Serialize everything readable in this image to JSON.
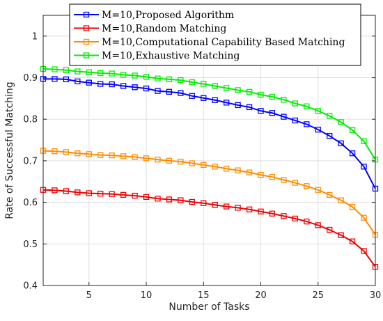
{
  "chart_data": {
    "type": "line",
    "xlabel": "Number of Tasks",
    "ylabel": "Rate of Successful Matching",
    "xlim": [
      1,
      30
    ],
    "ylim": [
      0.4,
      1.05
    ],
    "xticks": [
      5,
      10,
      15,
      20,
      25,
      30
    ],
    "yticks": [
      0.4,
      0.5,
      0.6,
      0.7,
      0.8,
      0.9,
      1
    ],
    "ytick_labels": [
      "0.4",
      "0.5",
      "0.6",
      "0.7",
      "0.8",
      "0.9",
      "1"
    ],
    "grid": true,
    "legend_position": "top-center",
    "x": [
      1,
      2,
      3,
      4,
      5,
      6,
      7,
      8,
      9,
      10,
      11,
      12,
      13,
      14,
      15,
      16,
      17,
      18,
      19,
      20,
      21,
      22,
      23,
      24,
      25,
      26,
      27,
      28,
      29,
      30
    ],
    "series": [
      {
        "name": "M=10,Proposed Algorithm",
        "color": "#0000ff",
        "values": [
          0.897,
          0.897,
          0.896,
          0.891,
          0.888,
          0.885,
          0.884,
          0.88,
          0.877,
          0.874,
          0.868,
          0.866,
          0.863,
          0.856,
          0.851,
          0.846,
          0.84,
          0.834,
          0.829,
          0.82,
          0.815,
          0.806,
          0.797,
          0.788,
          0.775,
          0.76,
          0.742,
          0.718,
          0.686,
          0.633
        ]
      },
      {
        "name": "M=10,Random Matching",
        "color": "#ee0000",
        "values": [
          0.63,
          0.629,
          0.627,
          0.624,
          0.622,
          0.621,
          0.62,
          0.618,
          0.616,
          0.613,
          0.609,
          0.607,
          0.605,
          0.601,
          0.598,
          0.594,
          0.59,
          0.587,
          0.583,
          0.578,
          0.573,
          0.567,
          0.561,
          0.554,
          0.545,
          0.534,
          0.521,
          0.506,
          0.483,
          0.445
        ]
      },
      {
        "name": "M=10,Computational Capability Based Matching",
        "color": "#ff8c00",
        "values": [
          0.724,
          0.723,
          0.721,
          0.718,
          0.716,
          0.714,
          0.713,
          0.711,
          0.709,
          0.706,
          0.703,
          0.7,
          0.698,
          0.694,
          0.69,
          0.686,
          0.681,
          0.677,
          0.672,
          0.666,
          0.661,
          0.654,
          0.647,
          0.639,
          0.63,
          0.618,
          0.605,
          0.589,
          0.563,
          0.522
        ]
      },
      {
        "name": "M=10,Exhaustive Matching",
        "color": "#00ee00",
        "values": [
          0.921,
          0.92,
          0.918,
          0.915,
          0.913,
          0.911,
          0.91,
          0.907,
          0.905,
          0.902,
          0.898,
          0.896,
          0.894,
          0.889,
          0.885,
          0.88,
          0.875,
          0.87,
          0.866,
          0.859,
          0.854,
          0.847,
          0.838,
          0.831,
          0.82,
          0.808,
          0.793,
          0.774,
          0.747,
          0.703
        ]
      }
    ]
  }
}
